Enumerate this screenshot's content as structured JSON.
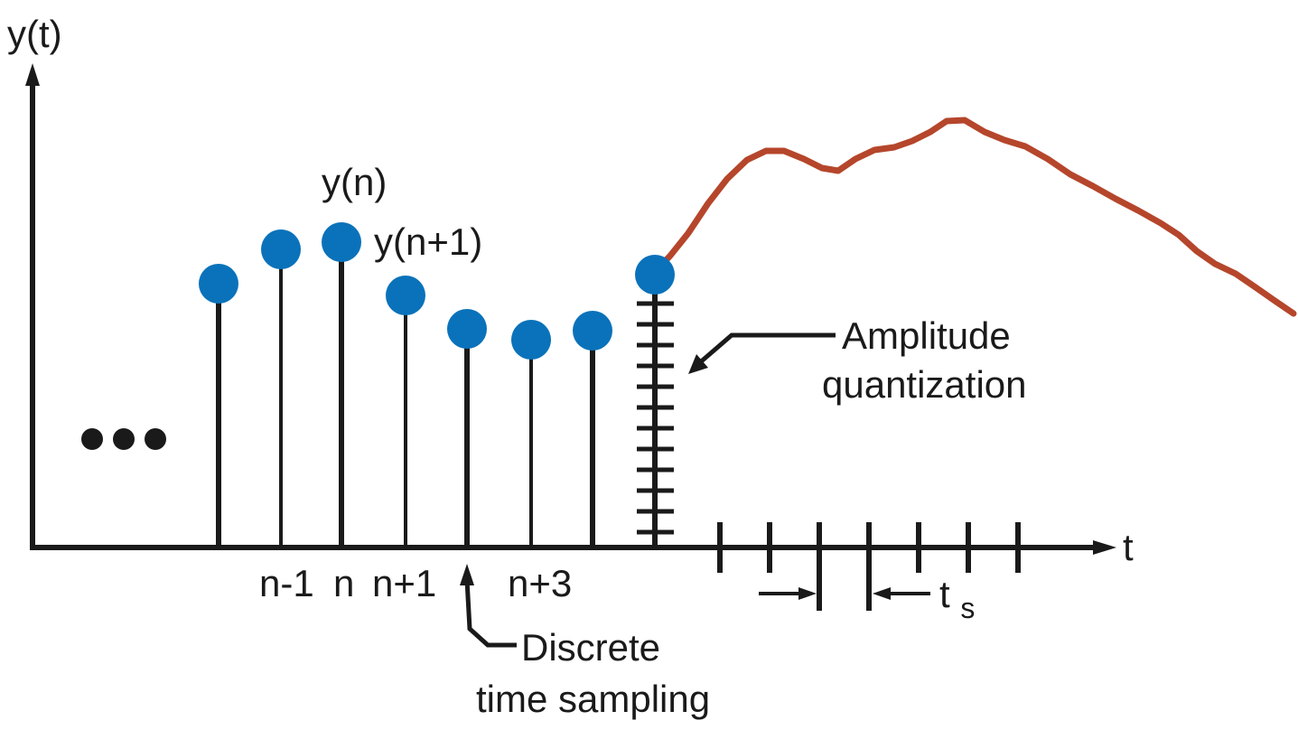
{
  "diagram": {
    "y_axis_label": "y(t)",
    "x_axis_label": "t",
    "sample_labels": [
      "n-1",
      "n",
      "n+1",
      "n+3"
    ],
    "point_labels": {
      "yn": "y(n)",
      "yn1": "y(n+1)"
    },
    "annotations": {
      "amplitude_line1": "Amplitude",
      "amplitude_line2": "quantization",
      "discrete_line1": "Discrete",
      "discrete_line2": "time sampling",
      "ts_main": "t",
      "ts_sub": "s"
    },
    "colors": {
      "sample_dot": "#0A72BA",
      "continuous_signal": "#B5462B",
      "line": "#1a1a1a"
    }
  }
}
